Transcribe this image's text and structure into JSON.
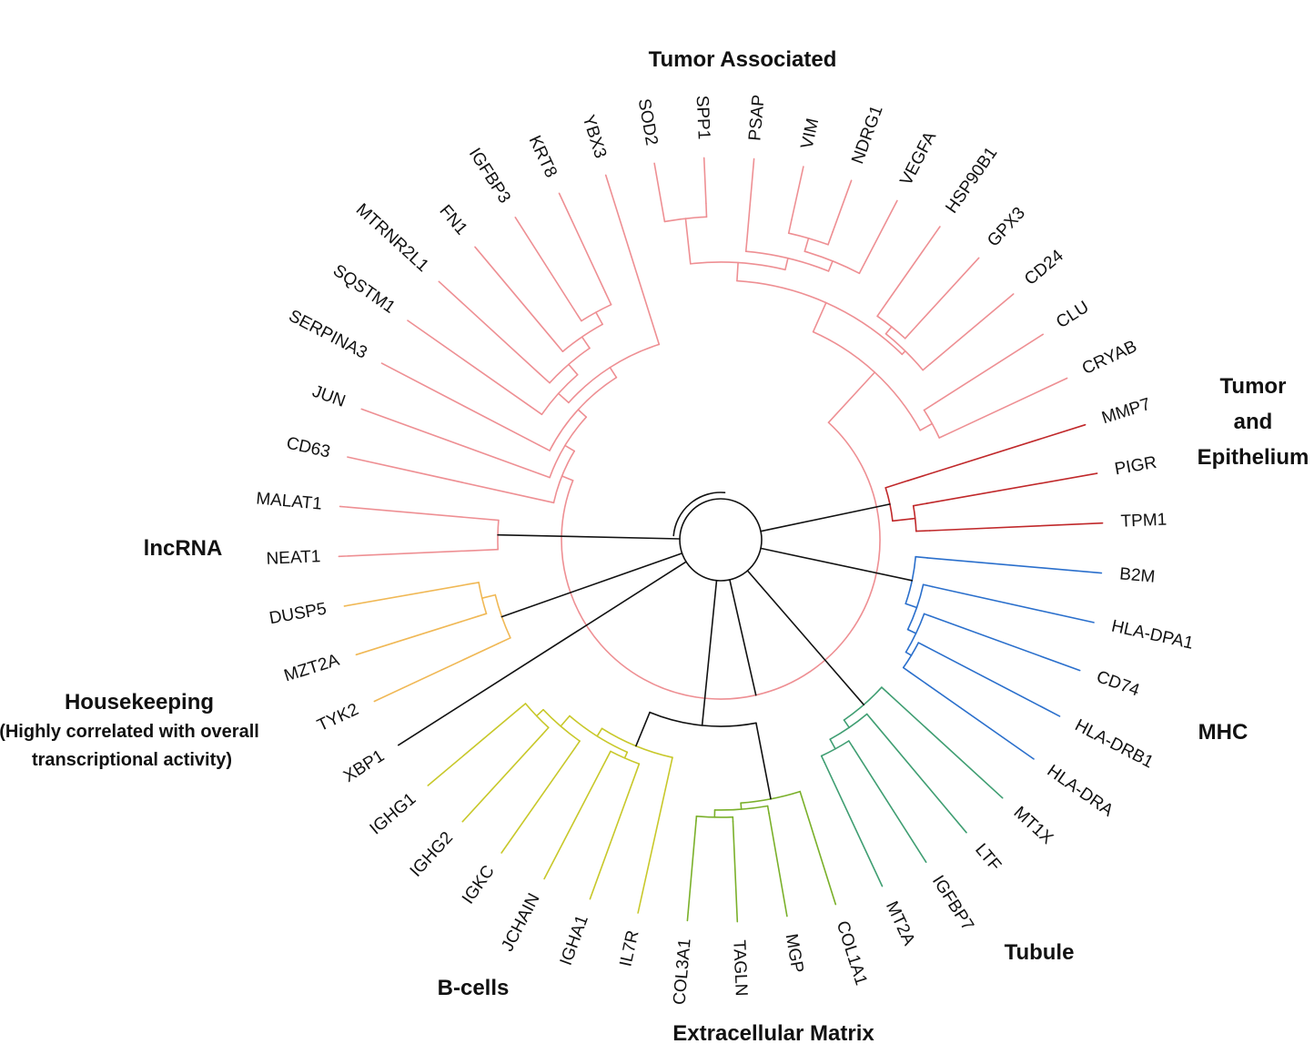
{
  "colors": {
    "tumor_associated": "#ee8f93",
    "lncrna": "#ee8f93",
    "tumor_epithelium": "#c0282a",
    "mhc": "#2a6fcc",
    "tubule": "#3f9e72",
    "extracellular_matrix": "#7ab02a",
    "b_cells": "#c8c82a",
    "housekeeping": "#f0b855",
    "root": "#111111"
  },
  "groups": {
    "tumor_associated": "Tumor Associated",
    "tumor_epithelium_1": "Tumor",
    "tumor_epithelium_2": "and",
    "tumor_epithelium_3": "Epithelium",
    "mhc": "MHC",
    "tubule": "Tubule",
    "extracellular_matrix": "Extracellular Matrix",
    "b_cells": "B-cells",
    "housekeeping_title": "Housekeeping",
    "housekeeping_sub1": "(Highly correlated with overall",
    "housekeeping_sub2": "transcriptional activity)",
    "lncrna": "lncRNA"
  },
  "genes": [
    {
      "name": "SOD2",
      "group": "tumor_associated"
    },
    {
      "name": "SPP1",
      "group": "tumor_associated"
    },
    {
      "name": "PSAP",
      "group": "tumor_associated"
    },
    {
      "name": "VIM",
      "group": "tumor_associated"
    },
    {
      "name": "NDRG1",
      "group": "tumor_associated"
    },
    {
      "name": "VEGFA",
      "group": "tumor_associated"
    },
    {
      "name": "HSP90B1",
      "group": "tumor_associated"
    },
    {
      "name": "GPX3",
      "group": "tumor_associated"
    },
    {
      "name": "CD24",
      "group": "tumor_associated"
    },
    {
      "name": "CLU",
      "group": "tumor_associated"
    },
    {
      "name": "CRYAB",
      "group": "tumor_associated"
    },
    {
      "name": "MMP7",
      "group": "tumor_epithelium"
    },
    {
      "name": "PIGR",
      "group": "tumor_epithelium"
    },
    {
      "name": "TPM1",
      "group": "tumor_epithelium"
    },
    {
      "name": "B2M",
      "group": "mhc"
    },
    {
      "name": "HLA-DPA1",
      "group": "mhc"
    },
    {
      "name": "CD74",
      "group": "mhc"
    },
    {
      "name": "HLA-DRB1",
      "group": "mhc"
    },
    {
      "name": "HLA-DRA",
      "group": "mhc"
    },
    {
      "name": "MT1X",
      "group": "tubule"
    },
    {
      "name": "LTF",
      "group": "tubule"
    },
    {
      "name": "IGFBP7",
      "group": "tubule"
    },
    {
      "name": "MT2A",
      "group": "tubule"
    },
    {
      "name": "COL1A1",
      "group": "extracellular_matrix"
    },
    {
      "name": "MGP",
      "group": "extracellular_matrix"
    },
    {
      "name": "TAGLN",
      "group": "extracellular_matrix"
    },
    {
      "name": "COL3A1",
      "group": "extracellular_matrix"
    },
    {
      "name": "IL7R",
      "group": "b_cells"
    },
    {
      "name": "IGHA1",
      "group": "b_cells"
    },
    {
      "name": "JCHAIN",
      "group": "b_cells"
    },
    {
      "name": "IGKC",
      "group": "b_cells"
    },
    {
      "name": "IGHG2",
      "group": "b_cells"
    },
    {
      "name": "IGHG1",
      "group": "b_cells"
    },
    {
      "name": "XBP1",
      "group": "root"
    },
    {
      "name": "TYK2",
      "group": "housekeeping"
    },
    {
      "name": "MZT2A",
      "group": "housekeeping"
    },
    {
      "name": "DUSP5",
      "group": "housekeeping"
    },
    {
      "name": "NEAT1",
      "group": "lncrna"
    },
    {
      "name": "MALAT1",
      "group": "lncrna"
    },
    {
      "name": "CD63",
      "group": "tumor_associated"
    },
    {
      "name": "JUN",
      "group": "tumor_associated"
    },
    {
      "name": "SERPINA3",
      "group": "tumor_associated"
    },
    {
      "name": "SQSTM1",
      "group": "tumor_associated"
    },
    {
      "name": "MTRNR2L1",
      "group": "tumor_associated"
    },
    {
      "name": "FN1",
      "group": "tumor_associated"
    },
    {
      "name": "IGFBP3",
      "group": "tumor_associated"
    },
    {
      "name": "KRT8",
      "group": "tumor_associated"
    },
    {
      "name": "YBX3",
      "group": "tumor_associated"
    }
  ]
}
